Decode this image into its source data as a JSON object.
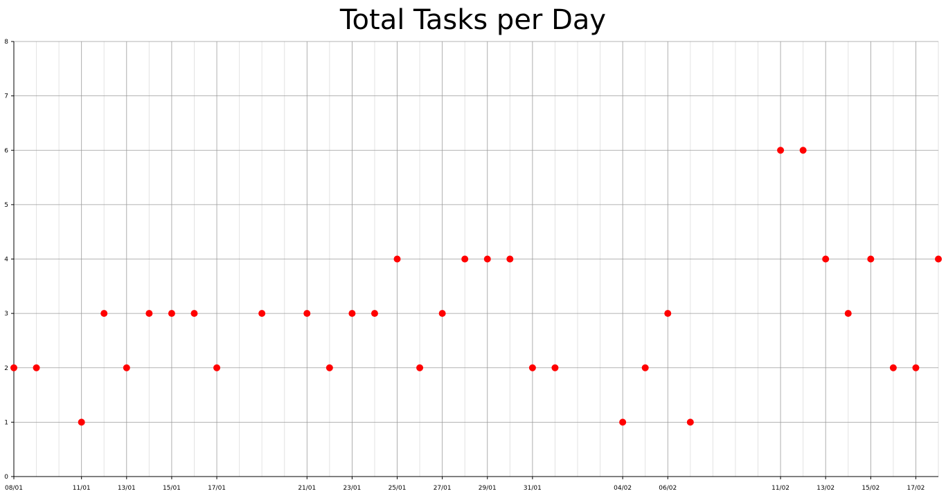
{
  "chart_data": {
    "type": "scatter",
    "title": "Total Tasks per Day",
    "xlabel": "",
    "ylabel": "",
    "ylim": [
      0,
      8
    ],
    "yticks": [
      "0",
      "1",
      "2",
      "3",
      "4",
      "5",
      "6",
      "7",
      "8"
    ],
    "xticks": [
      "08/01",
      "11/01",
      "13/01",
      "15/01",
      "17/01",
      "21/01",
      "23/01",
      "25/01",
      "27/01",
      "29/01",
      "31/01",
      "04/02",
      "06/02",
      "11/02",
      "13/02",
      "15/02",
      "17/02"
    ],
    "grid": true,
    "marker_color": "#ff0000",
    "points": [
      {
        "x": "08/01",
        "y": 2
      },
      {
        "x": "09/01",
        "y": 2
      },
      {
        "x": "11/01",
        "y": 1
      },
      {
        "x": "12/01",
        "y": 3
      },
      {
        "x": "13/01",
        "y": 2
      },
      {
        "x": "14/01",
        "y": 3
      },
      {
        "x": "15/01",
        "y": 3
      },
      {
        "x": "16/01",
        "y": 3
      },
      {
        "x": "17/01",
        "y": 2
      },
      {
        "x": "19/01",
        "y": 3
      },
      {
        "x": "21/01",
        "y": 3
      },
      {
        "x": "22/01",
        "y": 2
      },
      {
        "x": "23/01",
        "y": 3
      },
      {
        "x": "24/01",
        "y": 3
      },
      {
        "x": "25/01",
        "y": 4
      },
      {
        "x": "26/01",
        "y": 2
      },
      {
        "x": "27/01",
        "y": 3
      },
      {
        "x": "28/01",
        "y": 4
      },
      {
        "x": "29/01",
        "y": 4
      },
      {
        "x": "30/01",
        "y": 4
      },
      {
        "x": "31/01",
        "y": 2
      },
      {
        "x": "01/02",
        "y": 2
      },
      {
        "x": "04/02",
        "y": 1
      },
      {
        "x": "05/02",
        "y": 2
      },
      {
        "x": "06/02",
        "y": 3
      },
      {
        "x": "07/02",
        "y": 1
      },
      {
        "x": "11/02",
        "y": 6
      },
      {
        "x": "12/02",
        "y": 6
      },
      {
        "x": "13/02",
        "y": 4
      },
      {
        "x": "14/02",
        "y": 3
      },
      {
        "x": "15/02",
        "y": 4
      },
      {
        "x": "16/02",
        "y": 2
      },
      {
        "x": "17/02",
        "y": 2
      },
      {
        "x": "18/02",
        "y": 4
      }
    ]
  }
}
